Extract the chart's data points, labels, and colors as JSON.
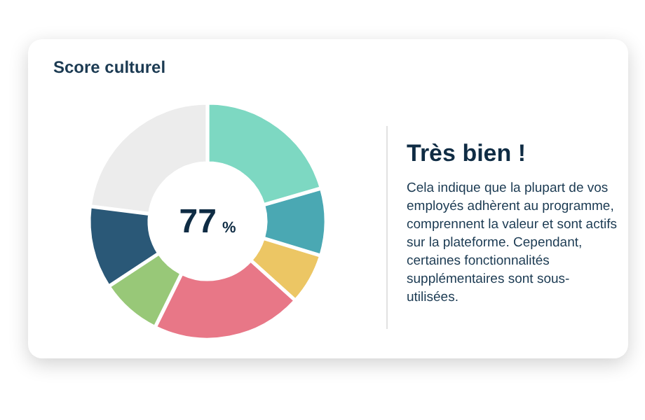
{
  "chart_data": {
    "type": "donut",
    "title": "Score culturel",
    "categories": [
      null,
      null,
      null,
      null,
      null,
      null,
      null
    ],
    "values": [
      20.5,
      9.2,
      7,
      20.6,
      8.4,
      11.3,
      23
    ],
    "colors": [
      "#7dd8c2",
      "#4aa8b3",
      "#ecc664",
      "#e87787",
      "#98c878",
      "#2a5877",
      "#ececec"
    ],
    "annotations": [
      "77 %",
      "Très bien !",
      "Cela indique que la plupart de vos employés adhèrent au programme, comprennent la valeur et sont actifs sur la plateforme. Cependant, certaines fonctionnalités supplémentaires sont sous-utilisées."
    ]
  }
}
